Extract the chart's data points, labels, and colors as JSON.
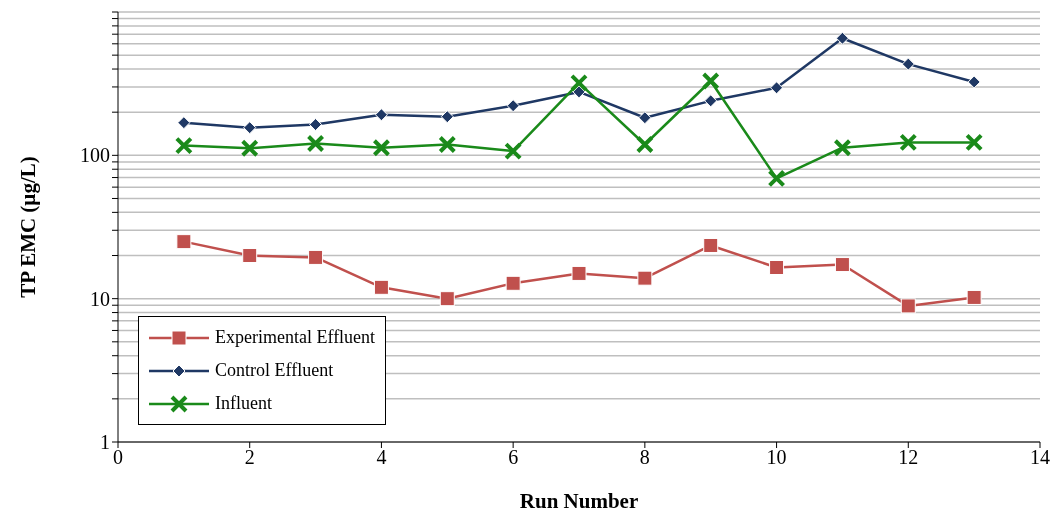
{
  "chart_data": {
    "type": "line",
    "xlabel": "Run Number",
    "ylabel": "TP EMC (µg/L)",
    "x": [
      1,
      2,
      3,
      4,
      5,
      6,
      7,
      8,
      9,
      10,
      11,
      12,
      13
    ],
    "series": [
      {
        "name": "Experimental Effluent",
        "color": "#c0504d",
        "marker": "square",
        "values": [
          25,
          20,
          19.4,
          12,
          10,
          12.8,
          15,
          13.9,
          23.5,
          16.5,
          17.3,
          8.9,
          10.2
        ]
      },
      {
        "name": "Control Effluent",
        "color": "#1f3864",
        "marker": "diamond",
        "values": [
          169,
          156,
          164,
          192,
          186,
          222,
          277,
          183,
          240,
          296,
          656,
          433,
          325
        ]
      },
      {
        "name": "Influent",
        "color": "#1a8a1a",
        "marker": "cross",
        "values": [
          117,
          112,
          121,
          113,
          119,
          107,
          320,
          119,
          330,
          69,
          113,
          123,
          123
        ]
      }
    ],
    "xlim": [
      0,
      14
    ],
    "xticks": [
      0,
      2,
      4,
      6,
      8,
      10,
      12,
      14
    ],
    "ylim": [
      1,
      1000
    ],
    "log": "y",
    "yticks": [
      1,
      {
        "value": 2,
        "label": null
      },
      {
        "value": 3,
        "label": null
      },
      {
        "value": 4,
        "label": null
      },
      {
        "value": 5,
        "label": null
      },
      {
        "value": 6,
        "label": null
      },
      {
        "value": 7,
        "label": null
      },
      {
        "value": 8,
        "label": null
      },
      {
        "value": 9,
        "label": null
      },
      10,
      {
        "value": 20,
        "label": null
      },
      {
        "value": 30,
        "label": null
      },
      {
        "value": 40,
        "label": null
      },
      {
        "value": 50,
        "label": null
      },
      {
        "value": 60,
        "label": null
      },
      {
        "value": 70,
        "label": null
      },
      {
        "value": 80,
        "label": null
      },
      {
        "value": 90,
        "label": null
      },
      100,
      {
        "value": 200,
        "label": null
      },
      {
        "value": 300,
        "label": null
      },
      {
        "value": 400,
        "label": null
      },
      {
        "value": 500,
        "label": null
      },
      {
        "value": 600,
        "label": null
      },
      {
        "value": 700,
        "label": null
      },
      {
        "value": 800,
        "label": null
      },
      {
        "value": 900,
        "label": null
      },
      {
        "value": 1000,
        "label": null
      }
    ],
    "grid": "y",
    "legend": "bottom left",
    "line_style": "solid"
  }
}
